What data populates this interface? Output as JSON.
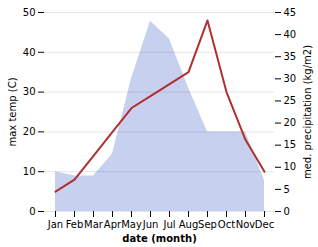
{
  "chart_data": {
    "type": "line",
    "categories": [
      "Jan",
      "Feb",
      "Mar",
      "Apr",
      "May",
      "Jun",
      "Jul",
      "Aug",
      "Sep",
      "Oct",
      "Nov",
      "Dec"
    ],
    "series": [
      {
        "type": "area",
        "axis": "y2",
        "color": "#c8d0f0",
        "values": [
          9,
          8,
          8,
          13,
          30,
          43,
          39,
          28,
          18,
          18,
          18,
          7
        ]
      },
      {
        "type": "line",
        "color": "#b03030",
        "values": [
          5,
          8,
          14,
          20,
          26,
          29,
          32,
          35,
          48,
          30,
          18,
          10
        ]
      }
    ],
    "xlabel": "date (month)",
    "ylabel": "max temp (C)",
    "y2label": "med. precipitation (kg/m2)",
    "ylim": [
      0,
      50
    ],
    "yticks": [
      0,
      10,
      20,
      30,
      40,
      50
    ],
    "y2lim": [
      0,
      45
    ],
    "y2ticks": [
      0,
      5,
      10,
      15,
      20,
      25,
      30,
      35,
      40,
      45
    ],
    "grid": true
  }
}
